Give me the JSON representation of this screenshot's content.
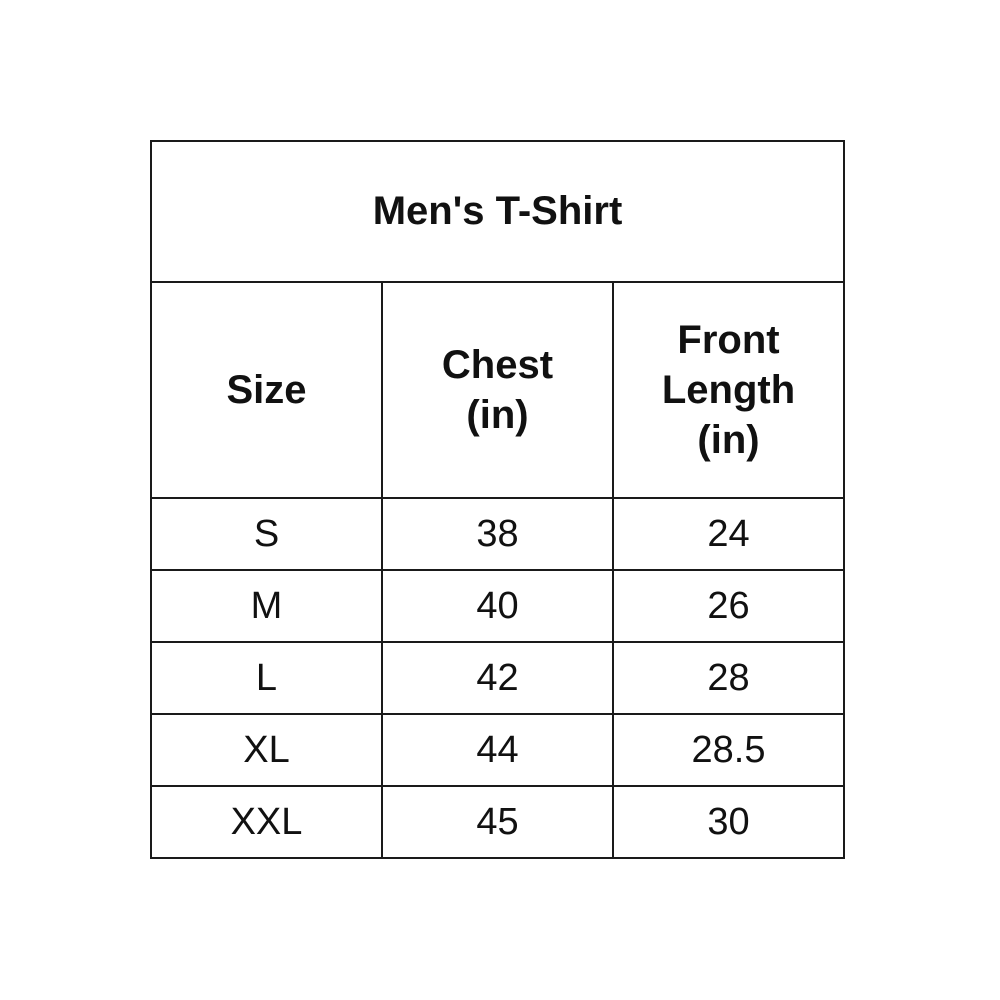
{
  "table": {
    "title": "Men's T-Shirt",
    "headers": [
      "Size",
      "Chest\n(in)",
      "Front\nLength\n(in)"
    ],
    "header_lines": [
      [
        "Size"
      ],
      [
        "Chest",
        "(in)"
      ],
      [
        "Front",
        "Length",
        "(in)"
      ]
    ],
    "rows": [
      [
        "S",
        "38",
        "24"
      ],
      [
        "M",
        "40",
        "26"
      ],
      [
        "L",
        "42",
        "28"
      ],
      [
        "XL",
        "44",
        "28.5"
      ],
      [
        "XXL",
        "45",
        "30"
      ]
    ]
  }
}
